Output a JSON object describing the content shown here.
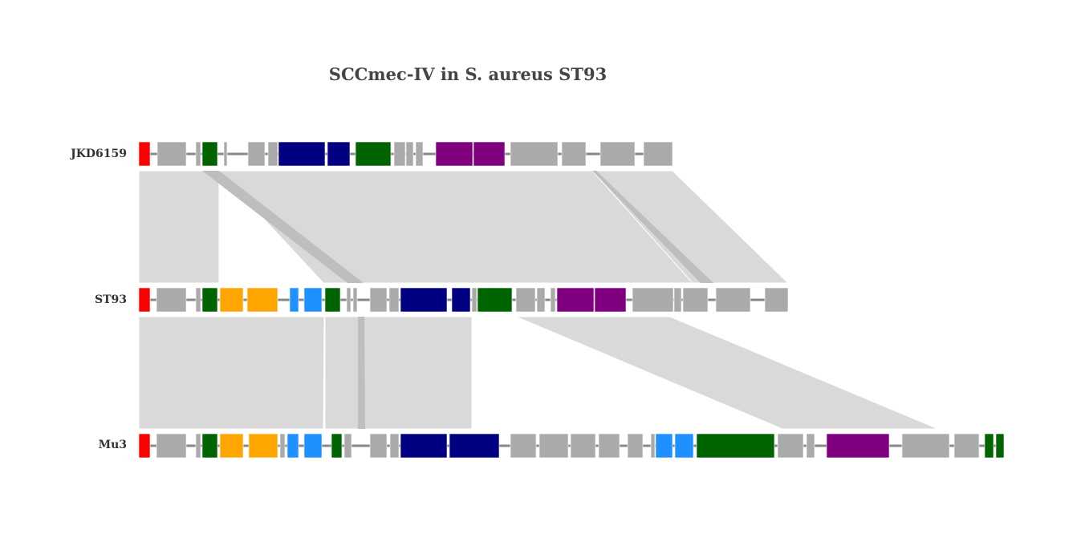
{
  "title": "SCCmec-IV in S. aureus ST93",
  "colors": {
    "red": "#ff0000",
    "grey": "#aaaaaa",
    "green": "#006400",
    "navy": "#000080",
    "purple": "#800080",
    "orange": "#ffa500",
    "blue": "#1e90ff",
    "backbone": "#888888",
    "link": "#d9d9d9",
    "link_inverted": "#bebebe"
  },
  "chart_data": {
    "type": "genoplot",
    "title": "SCCmec-IV in S. aureus ST93",
    "tracks": [
      {
        "name": "JKD6159",
        "length": 665,
        "genes": [
          {
            "start": 0,
            "end": 14,
            "color": "red"
          },
          {
            "start": 23,
            "end": 59,
            "color": "grey"
          },
          {
            "start": 71,
            "end": 77,
            "color": "grey"
          },
          {
            "start": 79,
            "end": 98,
            "color": "green"
          },
          {
            "start": 106,
            "end": 110,
            "color": "grey"
          },
          {
            "start": 136,
            "end": 157,
            "color": "grey"
          },
          {
            "start": 161,
            "end": 173,
            "color": "grey"
          },
          {
            "start": 174,
            "end": 232,
            "color": "navy"
          },
          {
            "start": 235,
            "end": 263,
            "color": "navy"
          },
          {
            "start": 270,
            "end": 314,
            "color": "green"
          },
          {
            "start": 318,
            "end": 332,
            "color": "grey"
          },
          {
            "start": 333,
            "end": 342,
            "color": "grey"
          },
          {
            "start": 345,
            "end": 354,
            "color": "grey"
          },
          {
            "start": 370,
            "end": 416,
            "color": "purple"
          },
          {
            "start": 417,
            "end": 456,
            "color": "purple"
          },
          {
            "start": 463,
            "end": 522,
            "color": "grey"
          },
          {
            "start": 527,
            "end": 557,
            "color": "grey"
          },
          {
            "start": 575,
            "end": 618,
            "color": "grey"
          },
          {
            "start": 629,
            "end": 665,
            "color": "grey"
          }
        ]
      },
      {
        "name": "ST93",
        "length": 809,
        "genes": [
          {
            "start": 0,
            "end": 14,
            "color": "red"
          },
          {
            "start": 22,
            "end": 59,
            "color": "grey"
          },
          {
            "start": 71,
            "end": 77,
            "color": "grey"
          },
          {
            "start": 79,
            "end": 98,
            "color": "green"
          },
          {
            "start": 101,
            "end": 130,
            "color": "orange"
          },
          {
            "start": 135,
            "end": 173,
            "color": "orange"
          },
          {
            "start": 188,
            "end": 199,
            "color": "blue"
          },
          {
            "start": 206,
            "end": 228,
            "color": "blue"
          },
          {
            "start": 232,
            "end": 251,
            "color": "green"
          },
          {
            "start": 259,
            "end": 264,
            "color": "grey"
          },
          {
            "start": 267,
            "end": 272,
            "color": "grey"
          },
          {
            "start": 288,
            "end": 309,
            "color": "grey"
          },
          {
            "start": 312,
            "end": 324,
            "color": "grey"
          },
          {
            "start": 326,
            "end": 384,
            "color": "navy"
          },
          {
            "start": 390,
            "end": 413,
            "color": "navy"
          },
          {
            "start": 415,
            "end": 421,
            "color": "grey"
          },
          {
            "start": 422,
            "end": 465,
            "color": "green"
          },
          {
            "start": 470,
            "end": 494,
            "color": "grey"
          },
          {
            "start": 496,
            "end": 506,
            "color": "grey"
          },
          {
            "start": 513,
            "end": 519,
            "color": "grey"
          },
          {
            "start": 521,
            "end": 567,
            "color": "purple"
          },
          {
            "start": 568,
            "end": 607,
            "color": "purple"
          },
          {
            "start": 615,
            "end": 666,
            "color": "grey"
          },
          {
            "start": 667,
            "end": 676,
            "color": "grey"
          },
          {
            "start": 678,
            "end": 709,
            "color": "grey"
          },
          {
            "start": 719,
            "end": 762,
            "color": "grey"
          },
          {
            "start": 780,
            "end": 809,
            "color": "grey"
          }
        ]
      },
      {
        "name": "Mu3",
        "length": 1078,
        "genes": [
          {
            "start": 0,
            "end": 14,
            "color": "red"
          },
          {
            "start": 22,
            "end": 59,
            "color": "grey"
          },
          {
            "start": 71,
            "end": 77,
            "color": "grey"
          },
          {
            "start": 79,
            "end": 98,
            "color": "green"
          },
          {
            "start": 101,
            "end": 130,
            "color": "orange"
          },
          {
            "start": 137,
            "end": 173,
            "color": "orange"
          },
          {
            "start": 176,
            "end": 182,
            "color": "grey"
          },
          {
            "start": 185,
            "end": 199,
            "color": "blue"
          },
          {
            "start": 206,
            "end": 228,
            "color": "blue"
          },
          {
            "start": 240,
            "end": 253,
            "color": "green"
          },
          {
            "start": 256,
            "end": 265,
            "color": "grey"
          },
          {
            "start": 288,
            "end": 309,
            "color": "grey"
          },
          {
            "start": 313,
            "end": 324,
            "color": "grey"
          },
          {
            "start": 326,
            "end": 384,
            "color": "navy"
          },
          {
            "start": 387,
            "end": 449,
            "color": "navy"
          },
          {
            "start": 463,
            "end": 495,
            "color": "grey"
          },
          {
            "start": 499,
            "end": 535,
            "color": "grey"
          },
          {
            "start": 538,
            "end": 569,
            "color": "grey"
          },
          {
            "start": 573,
            "end": 599,
            "color": "grey"
          },
          {
            "start": 609,
            "end": 628,
            "color": "grey"
          },
          {
            "start": 638,
            "end": 643,
            "color": "grey"
          },
          {
            "start": 644,
            "end": 665,
            "color": "blue"
          },
          {
            "start": 668,
            "end": 691,
            "color": "blue"
          },
          {
            "start": 695,
            "end": 792,
            "color": "green"
          },
          {
            "start": 796,
            "end": 828,
            "color": "grey"
          },
          {
            "start": 832,
            "end": 842,
            "color": "grey"
          },
          {
            "start": 857,
            "end": 935,
            "color": "purple"
          },
          {
            "start": 951,
            "end": 1010,
            "color": "grey"
          },
          {
            "start": 1016,
            "end": 1047,
            "color": "grey"
          },
          {
            "start": 1054,
            "end": 1065,
            "color": "green"
          },
          {
            "start": 1068,
            "end": 1078,
            "color": "green"
          }
        ]
      }
    ],
    "links": [
      {
        "between": [
          0,
          1
        ],
        "a": [
          0,
          100
        ],
        "b": [
          0,
          100
        ],
        "inverted": false
      },
      {
        "between": [
          0,
          1
        ],
        "a": [
          100,
          565
        ],
        "b": [
          230,
          710
        ],
        "inverted": false
      },
      {
        "between": [
          0,
          1
        ],
        "a": [
          79,
          100
        ],
        "b": [
          260,
          280
        ],
        "inverted": true
      },
      {
        "between": [
          0,
          1
        ],
        "a": [
          565,
          665
        ],
        "b": [
          690,
          809
        ],
        "inverted": false
      },
      {
        "between": [
          0,
          1
        ],
        "a": [
          565,
          570
        ],
        "b": [
          700,
          716
        ],
        "inverted": true
      },
      {
        "between": [
          1,
          2
        ],
        "a": [
          0,
          231
        ],
        "b": [
          0,
          230
        ],
        "inverted": false
      },
      {
        "between": [
          1,
          2
        ],
        "a": [
          232,
          415
        ],
        "b": [
          232,
          415
        ],
        "inverted": false
      },
      {
        "between": [
          1,
          2
        ],
        "a": [
          273,
          281
        ],
        "b": [
          273,
          282
        ],
        "inverted": true
      },
      {
        "between": [
          1,
          2
        ],
        "a": [
          470,
          662
        ],
        "b": [
          802,
          996
        ],
        "inverted": false
      }
    ]
  }
}
